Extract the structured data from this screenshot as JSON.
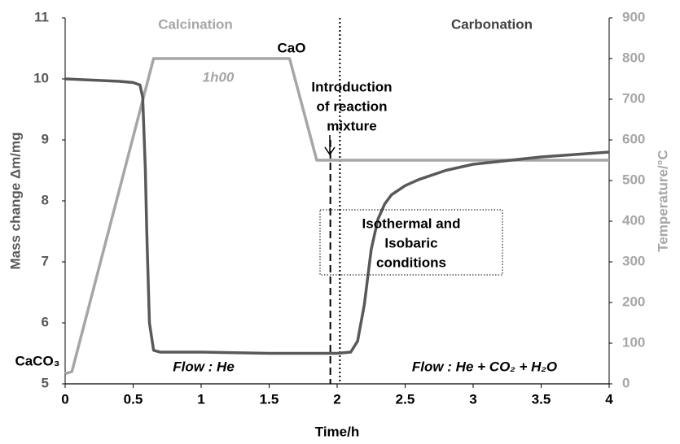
{
  "chart_data": {
    "type": "line",
    "xlabel": "Time/h",
    "ylabel": "Mass change Δm/mg",
    "y2label": "Temperature/°C",
    "xlim": [
      0,
      4
    ],
    "xticks": [
      0,
      0.5,
      1,
      1.5,
      2,
      2.5,
      3,
      3.5,
      4
    ],
    "ylim": [
      5,
      11
    ],
    "yticks": [
      5,
      6,
      7,
      8,
      9,
      10,
      11
    ],
    "y2lim": [
      0,
      900
    ],
    "y2ticks": [
      0,
      100,
      200,
      300,
      400,
      500,
      600,
      700,
      800,
      900
    ],
    "grid": false,
    "series": [
      {
        "color": "#595959",
        "axis": "y",
        "x": [
          0,
          0.1,
          0.2,
          0.3,
          0.4,
          0.5,
          0.55,
          0.57,
          0.59,
          0.6,
          0.62,
          0.65,
          0.7,
          1,
          1.5,
          2,
          2.1,
          2.15,
          2.2,
          2.25,
          2.3,
          2.35,
          2.4,
          2.5,
          2.6,
          2.8,
          3,
          3.5,
          4
        ],
        "values": [
          10,
          9.99,
          9.98,
          9.97,
          9.96,
          9.94,
          9.9,
          9.7,
          8.5,
          7.5,
          6,
          5.55,
          5.52,
          5.52,
          5.5,
          5.5,
          5.52,
          5.7,
          6.3,
          7.2,
          7.7,
          7.95,
          8.1,
          8.25,
          8.35,
          8.5,
          8.6,
          8.72,
          8.8
        ]
      },
      {
        "color": "#a6a6a6",
        "axis": "y2",
        "x": [
          0,
          0.05,
          0.65,
          1.65,
          1.85,
          4
        ],
        "values": [
          25,
          30,
          800,
          800,
          550,
          550
        ]
      }
    ],
    "markers": [
      {
        "x": 1.95,
        "style": "dashed"
      },
      {
        "x": 2.02,
        "style": "dotted"
      }
    ],
    "annotations": [
      {
        "text": "Calcination"
      },
      {
        "text": "Carbonation"
      },
      {
        "text": "CaO"
      },
      {
        "text": "1h00"
      },
      {
        "lines": [
          "Introduction",
          "of reaction",
          "mixture"
        ]
      },
      {
        "lines": [
          "Isothermal and",
          "Isobaric",
          "conditions"
        ]
      },
      {
        "text": "Flow : He"
      },
      {
        "text": "Flow : He + CO₂ + H₂O"
      },
      {
        "text": "CaCO₃"
      }
    ]
  }
}
